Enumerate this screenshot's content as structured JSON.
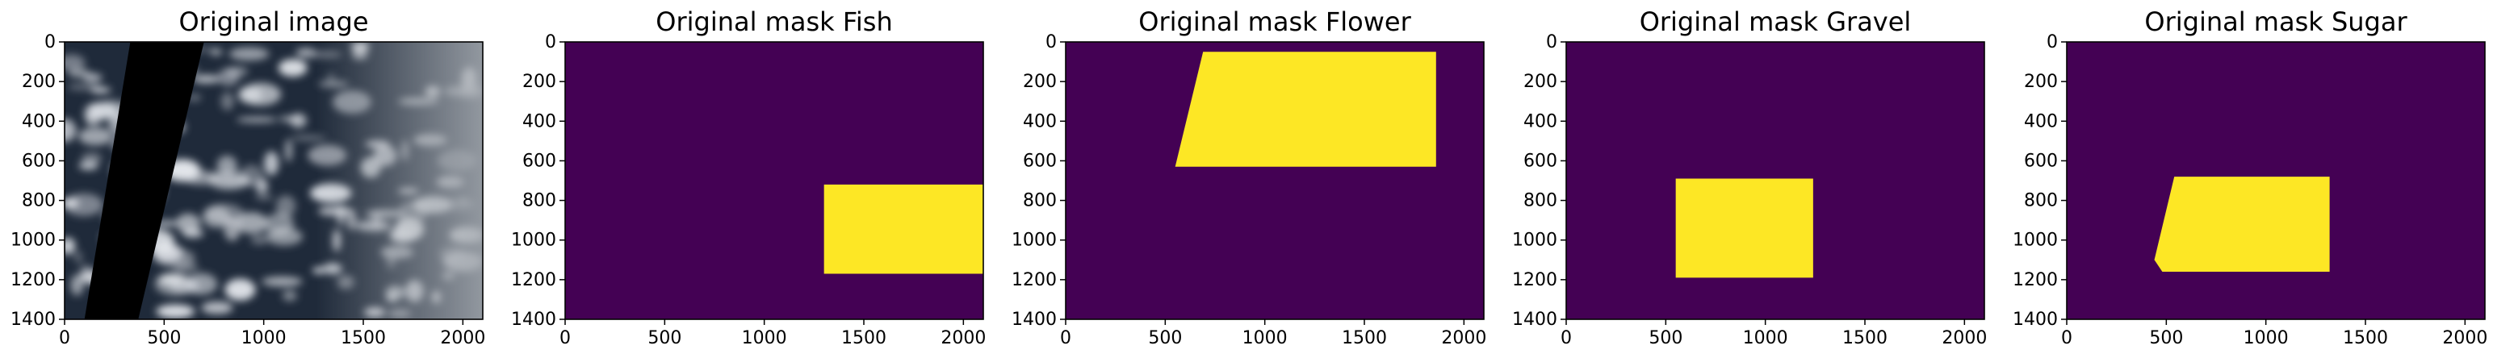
{
  "chart_data": [
    {
      "type": "image",
      "title": "Original image",
      "xlim": [
        0,
        2100
      ],
      "ylim": [
        1400,
        0
      ],
      "xticks": [
        0,
        500,
        1000,
        1500,
        2000
      ],
      "yticks": [
        0,
        200,
        400,
        600,
        800,
        1000,
        1200,
        1400
      ],
      "content": "satellite cloud photograph with a black diagonal swath",
      "swath": [
        [
          330,
          0
        ],
        [
          700,
          0
        ],
        [
          370,
          1400
        ],
        [
          100,
          1400
        ]
      ]
    },
    {
      "type": "heatmap",
      "title": "Original mask Fish",
      "xlim": [
        0,
        2100
      ],
      "ylim": [
        1400,
        0
      ],
      "xticks": [
        0,
        500,
        1000,
        1500,
        2000
      ],
      "yticks": [
        0,
        200,
        400,
        600,
        800,
        1000,
        1200,
        1400
      ],
      "background": 0,
      "regions": [
        {
          "value": 1,
          "polygon": [
            [
              1300,
              720
            ],
            [
              2100,
              720
            ],
            [
              2100,
              1170
            ],
            [
              1300,
              1170
            ]
          ]
        }
      ]
    },
    {
      "type": "heatmap",
      "title": "Original mask Flower",
      "xlim": [
        0,
        2100
      ],
      "ylim": [
        1400,
        0
      ],
      "xticks": [
        0,
        500,
        1000,
        1500,
        2000
      ],
      "yticks": [
        0,
        200,
        400,
        600,
        800,
        1000,
        1200,
        1400
      ],
      "background": 0,
      "regions": [
        {
          "value": 1,
          "polygon": [
            [
              690,
              50
            ],
            [
              1860,
              50
            ],
            [
              1860,
              630
            ],
            [
              550,
              630
            ]
          ]
        }
      ]
    },
    {
      "type": "heatmap",
      "title": "Original mask Gravel",
      "xlim": [
        0,
        2100
      ],
      "ylim": [
        1400,
        0
      ],
      "xticks": [
        0,
        500,
        1000,
        1500,
        2000
      ],
      "yticks": [
        0,
        200,
        400,
        600,
        800,
        1000,
        1200,
        1400
      ],
      "background": 0,
      "regions": [
        {
          "value": 1,
          "polygon": [
            [
              550,
              690
            ],
            [
              1240,
              690
            ],
            [
              1240,
              1190
            ],
            [
              550,
              1190
            ]
          ]
        }
      ]
    },
    {
      "type": "heatmap",
      "title": "Original mask Sugar",
      "xlim": [
        0,
        2100
      ],
      "ylim": [
        1400,
        0
      ],
      "xticks": [
        0,
        500,
        1000,
        1500,
        2000
      ],
      "yticks": [
        0,
        200,
        400,
        600,
        800,
        1000,
        1200,
        1400
      ],
      "background": 0,
      "regions": [
        {
          "value": 1,
          "polygon": [
            [
              540,
              680
            ],
            [
              1320,
              680
            ],
            [
              1320,
              1160
            ],
            [
              480,
              1160
            ],
            [
              440,
              1100
            ]
          ]
        }
      ]
    }
  ],
  "colors": {
    "mask_background": "#440154",
    "mask_foreground": "#fde725",
    "swath": "#000000",
    "sky_dark": "#1f2a3a",
    "cloud": "#e6e9ee",
    "haze": "#a7acb2"
  }
}
